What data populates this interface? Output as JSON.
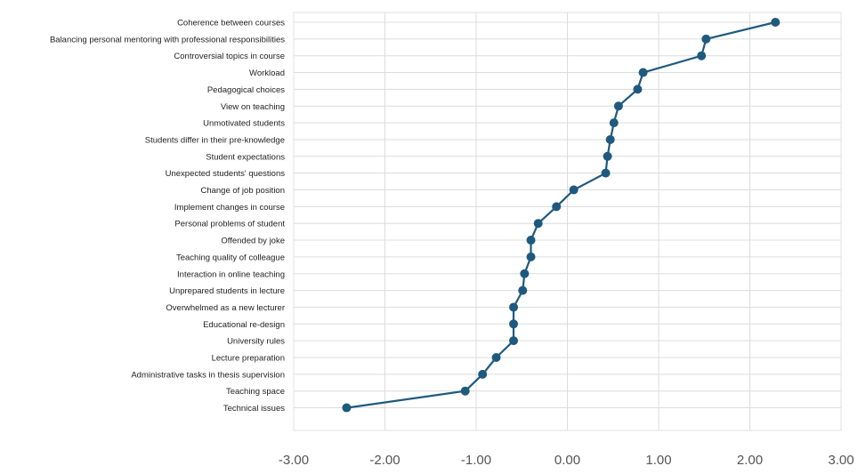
{
  "chart_data": {
    "type": "line",
    "title": "",
    "xlabel": "",
    "ylabel": "",
    "categories": [
      "Coherence between courses",
      "Balancing personal mentoring with professional responsibilities",
      "Controversial topics in course",
      "Workload",
      "Pedagogical choices",
      "View on teaching",
      "Unmotivated students",
      "Students differ in their pre-knowledge",
      "Student expectations",
      "Unexpected students' questions",
      "Change of job position",
      "Implement changes in course",
      "Personal problems of student",
      "Offended by joke",
      "Teaching quality of colleague",
      "Interaction in online teaching",
      "Unprepared students in lecture",
      "Overwhelmed as a new lecturer",
      "Educational re-design",
      "University rules",
      "Lecture preparation",
      "Administrative tasks in thesis supervision",
      "Teaching space",
      "Technical issues"
    ],
    "values": [
      2.28,
      1.52,
      1.47,
      0.83,
      0.77,
      0.56,
      0.51,
      0.47,
      0.44,
      0.42,
      0.07,
      -0.12,
      -0.32,
      -0.4,
      -0.4,
      -0.47,
      -0.49,
      -0.59,
      -0.59,
      -0.59,
      -0.78,
      -0.93,
      -1.12,
      -2.42
    ],
    "xlim": [
      -3,
      3
    ],
    "x_ticks": [
      "-3.00",
      "-2.00",
      "-1.00",
      "0.00",
      "1.00",
      "2.00",
      "3.00"
    ],
    "x_tick_values": [
      -3,
      -2,
      -1,
      0,
      1,
      2,
      3
    ],
    "grid": true,
    "legend": "none",
    "colors": {
      "series": "#1f5a7e",
      "grid": "#dcdcdc",
      "frame": "#e2e2e2",
      "label": "#222222",
      "tick": "#555555"
    }
  }
}
